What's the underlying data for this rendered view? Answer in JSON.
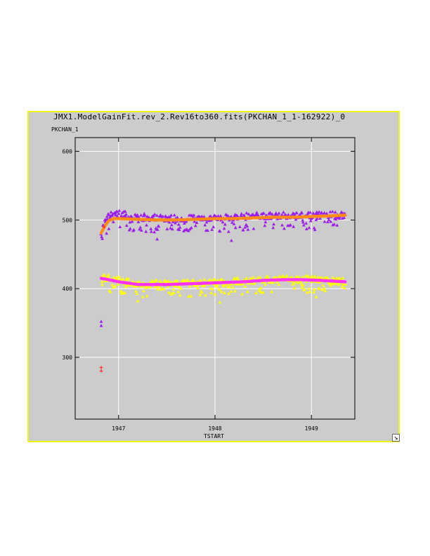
{
  "window": {
    "title": "JMX1.ModelGainFit.rev_2.Rev16to360.fits(PKCHAN_1_1-162922)_0"
  },
  "chart_data": {
    "type": "scatter",
    "xlabel": "TSTART",
    "ylabel": "PKCHAN_1",
    "xlim": [
      1946.55,
      1949.45
    ],
    "ylim": [
      210,
      620
    ],
    "x_ticks": [
      1947,
      1948,
      1949
    ],
    "y_ticks": [
      300,
      400,
      500,
      600
    ],
    "grid": true,
    "colors": {
      "upper_points": "#9b1fe8",
      "upper_fit": "#ff8c1a",
      "lower_points": "#ffff00",
      "lower_fit": "#ff33ff",
      "outlier_red": "#ff2020"
    },
    "series": [
      {
        "style": "fit",
        "color": "#ff8c1a",
        "x": [
          1946.82,
          1946.86,
          1946.9,
          1946.95,
          1947.0,
          1947.2,
          1947.4,
          1947.6,
          1947.8,
          1948.0,
          1948.2,
          1948.4,
          1948.6,
          1948.8,
          1949.0,
          1949.2,
          1949.35
        ],
        "y": [
          481,
          492,
          499,
          502,
          502,
          501,
          500,
          500,
          501,
          502,
          502,
          503,
          504,
          504,
          505,
          506,
          507
        ]
      },
      {
        "style": "fit",
        "color": "#ff33ff",
        "x": [
          1946.82,
          1946.9,
          1947.0,
          1947.1,
          1947.2,
          1947.3,
          1947.5,
          1947.7,
          1947.9,
          1948.1,
          1948.3,
          1948.5,
          1948.7,
          1948.9,
          1949.1,
          1949.35
        ],
        "y": [
          415,
          413,
          410,
          408,
          406,
          406,
          406,
          407,
          408,
          409,
          410,
          412,
          413,
          413,
          412,
          410
        ]
      },
      {
        "style": "triangles",
        "color": "#9b1fe8",
        "base_x": [
          1946.82,
          1946.9,
          1947.0,
          1947.2,
          1947.4,
          1947.6,
          1947.8,
          1948.0,
          1948.2,
          1948.4,
          1948.6,
          1948.8,
          1949.0,
          1949.2,
          1949.35
        ],
        "base_y": [
          485,
          505,
          508,
          503,
          502,
          501,
          502,
          503,
          503,
          505,
          505,
          505,
          505,
          506,
          505
        ],
        "spread_up": 10,
        "spread_down": 20,
        "extra_points": [
          [
            1946.82,
            352
          ],
          [
            1946.82,
            346
          ],
          [
            1948.17,
            470
          ],
          [
            1947.4,
            472
          ]
        ]
      },
      {
        "style": "triangles",
        "color": "#ffff00",
        "base_x": [
          1946.82,
          1946.9,
          1947.0,
          1947.2,
          1947.4,
          1947.6,
          1947.8,
          1948.0,
          1948.2,
          1948.4,
          1948.6,
          1948.8,
          1949.0,
          1949.2,
          1949.35
        ],
        "base_y": [
          415,
          414,
          411,
          405,
          406,
          406,
          407,
          408,
          409,
          411,
          412,
          413,
          412,
          410,
          409
        ],
        "spread_up": 10,
        "spread_down": 18,
        "extra_points": [
          [
            1947.2,
            382
          ],
          [
            1948.05,
            380
          ],
          [
            1949.05,
            388
          ]
        ]
      },
      {
        "style": "crosses",
        "color": "#ff2020",
        "x": [
          1946.82,
          1946.82,
          1946.85
        ],
        "y": [
          285,
          280,
          490
        ]
      }
    ]
  }
}
